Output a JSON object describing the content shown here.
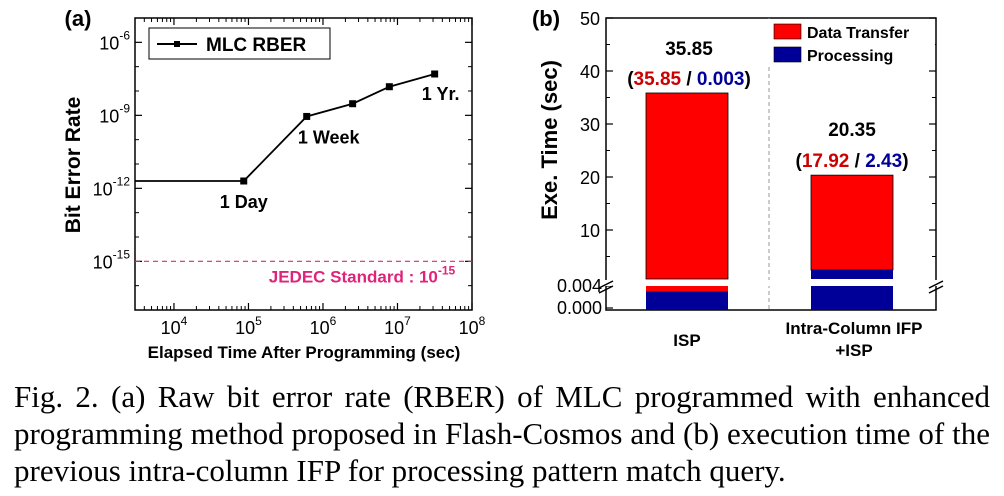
{
  "chart_data": [
    {
      "type": "line",
      "panel_label": "(a)",
      "title": "",
      "xlabel": "Elapsed Time After Programming (sec)",
      "ylabel": "Bit Error Rate",
      "xscale": "log",
      "yscale": "log",
      "xlim": [
        3000,
        100000000
      ],
      "ylim": [
        1e-17,
        1e-05
      ],
      "x_ticks": [
        {
          "value": 10000,
          "base": "10",
          "exp": "4"
        },
        {
          "value": 100000,
          "base": "10",
          "exp": "5"
        },
        {
          "value": 1000000,
          "base": "10",
          "exp": "6"
        },
        {
          "value": 10000000,
          "base": "10",
          "exp": "7"
        },
        {
          "value": 100000000,
          "base": "10",
          "exp": "8"
        }
      ],
      "y_ticks": [
        {
          "value": 1e-15,
          "base": "10",
          "exp": "-15"
        },
        {
          "value": 1e-12,
          "base": "10",
          "exp": "-12"
        },
        {
          "value": 1e-09,
          "base": "10",
          "exp": "-9"
        },
        {
          "value": 1e-06,
          "base": "10",
          "exp": "-6"
        }
      ],
      "legend": {
        "position": "top-left",
        "label": "MLC RBER"
      },
      "series": [
        {
          "name": "MLC RBER",
          "line_start": [
            3000,
            2e-12
          ],
          "points": [
            {
              "x": 86400,
              "y": 2e-12
            },
            {
              "x": 604800,
              "y": 9e-10
            },
            {
              "x": 2500000,
              "y": 3e-09
            },
            {
              "x": 7776000,
              "y": 1.5e-08
            },
            {
              "x": 31536000,
              "y": 5e-08
            }
          ]
        }
      ],
      "annotations": [
        {
          "text": "1 Day",
          "x": 86400,
          "y": 2e-12
        },
        {
          "text": "1 Week",
          "x": 604800,
          "y": 9e-10
        },
        {
          "text": "1 Yr.",
          "x": 31536000,
          "y": 5e-08
        }
      ],
      "reference_line": {
        "y": 1e-15,
        "label": "JEDEC Standard : ",
        "label_base": "10",
        "label_exp": "-15",
        "color": "#e0237a"
      },
      "grid": false
    },
    {
      "type": "bar",
      "stacked": true,
      "panel_label": "(b)",
      "title": "",
      "xlabel": "",
      "ylabel": "Exe. Time (sec)",
      "broken_axis": true,
      "y_ticks_upper": [
        "10",
        "20",
        "30",
        "40",
        "50"
      ],
      "y_ticks_lower": [
        "0.000",
        "0.004"
      ],
      "categories": [
        "ISP",
        "Intra-Column IFP\n+ISP"
      ],
      "category_lines": [
        [
          "ISP"
        ],
        [
          "Intra-Column IFP",
          "+ISP"
        ]
      ],
      "series": [
        {
          "name": "Data Transfer",
          "color": "#ff0000",
          "values": [
            35.85,
            17.92
          ]
        },
        {
          "name": "Processing",
          "color": "#000099",
          "values": [
            0.003,
            2.43
          ]
        }
      ],
      "totals": [
        "35.85",
        "20.35"
      ],
      "breakdowns": [
        {
          "transfer": "35.85",
          "processing": "0.003"
        },
        {
          "transfer": "17.92",
          "processing": "2.43"
        }
      ],
      "legend": {
        "position": "top-right"
      },
      "grid": false
    }
  ],
  "caption": "Fig. 2.  (a) Raw bit error rate (RBER) of MLC programmed with enhanced programming method proposed in Flash-Cosmos and (b) execution time of the previous intra-column IFP for processing pattern match query."
}
